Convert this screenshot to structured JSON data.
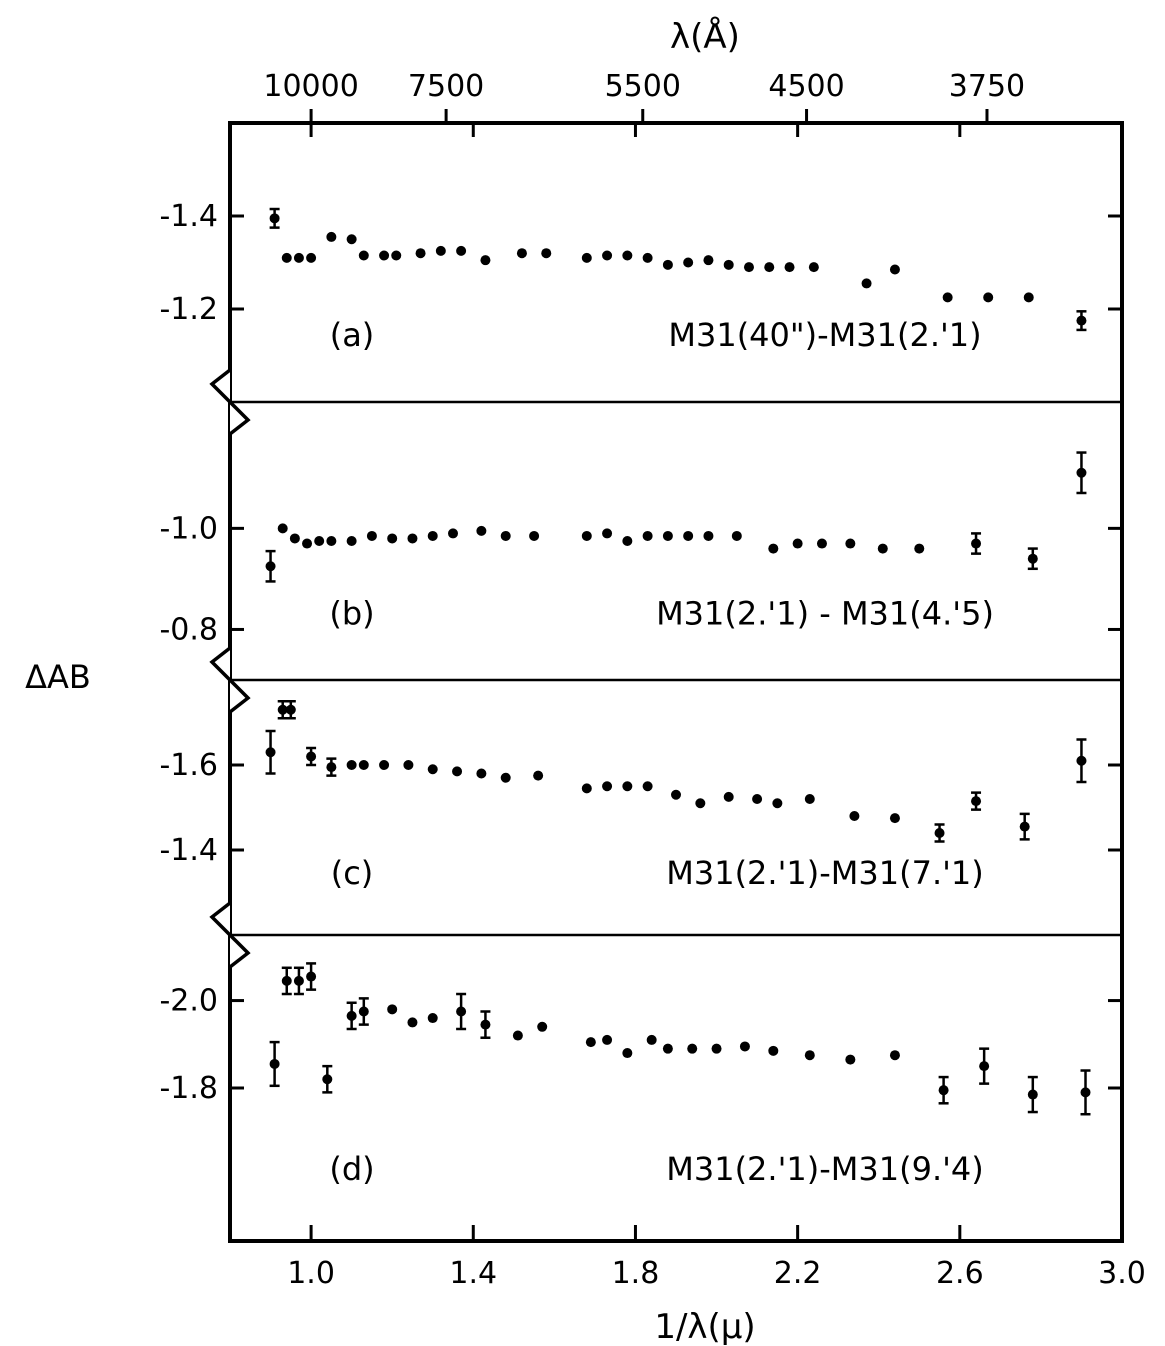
{
  "chart_data": {
    "type": "scatter",
    "title": "",
    "xlabel": "1/λ(μ)",
    "top_xlabel": "λ(Å)",
    "ylabel": "ΔAB",
    "xlim": [
      0.8,
      3.0
    ],
    "x_ticks": [
      "1.0",
      "1.4",
      "1.8",
      "2.2",
      "2.6",
      "3.0"
    ],
    "top_ticks": [
      {
        "label": "10000",
        "x": 1.0
      },
      {
        "label": "7500",
        "x": 1.333
      },
      {
        "label": "5500",
        "x": 1.818
      },
      {
        "label": "4500",
        "x": 2.222
      },
      {
        "label": "3750",
        "x": 2.667
      }
    ],
    "panels": [
      {
        "id": "a",
        "letter": "(a)",
        "label": "M31(40\")-M31(2.'1)",
        "ylim": [
          -1.0,
          -1.6
        ],
        "y_ticks": [
          "-1.4",
          "-1.2"
        ],
        "points": [
          {
            "x": 0.91,
            "y": -1.395,
            "err": 0.02
          },
          {
            "x": 0.94,
            "y": -1.31
          },
          {
            "x": 0.97,
            "y": -1.31
          },
          {
            "x": 1.0,
            "y": -1.31
          },
          {
            "x": 1.05,
            "y": -1.355
          },
          {
            "x": 1.1,
            "y": -1.35
          },
          {
            "x": 1.13,
            "y": -1.315
          },
          {
            "x": 1.18,
            "y": -1.315
          },
          {
            "x": 1.21,
            "y": -1.315
          },
          {
            "x": 1.27,
            "y": -1.32
          },
          {
            "x": 1.32,
            "y": -1.325
          },
          {
            "x": 1.37,
            "y": -1.325
          },
          {
            "x": 1.43,
            "y": -1.305
          },
          {
            "x": 1.52,
            "y": -1.32
          },
          {
            "x": 1.58,
            "y": -1.32
          },
          {
            "x": 1.68,
            "y": -1.31
          },
          {
            "x": 1.73,
            "y": -1.315
          },
          {
            "x": 1.78,
            "y": -1.315
          },
          {
            "x": 1.83,
            "y": -1.31
          },
          {
            "x": 1.88,
            "y": -1.295
          },
          {
            "x": 1.93,
            "y": -1.3
          },
          {
            "x": 1.98,
            "y": -1.305
          },
          {
            "x": 2.03,
            "y": -1.295
          },
          {
            "x": 2.08,
            "y": -1.29
          },
          {
            "x": 2.13,
            "y": -1.29
          },
          {
            "x": 2.18,
            "y": -1.29
          },
          {
            "x": 2.24,
            "y": -1.29
          },
          {
            "x": 2.37,
            "y": -1.255
          },
          {
            "x": 2.44,
            "y": -1.285
          },
          {
            "x": 2.57,
            "y": -1.225
          },
          {
            "x": 2.67,
            "y": -1.225
          },
          {
            "x": 2.77,
            "y": -1.225
          },
          {
            "x": 2.9,
            "y": -1.175,
            "err": 0.02
          }
        ]
      },
      {
        "id": "b",
        "letter": "(b)",
        "label": "M31(2.'1) - M31(4.'5)",
        "ylim": [
          -0.7,
          -1.25
        ],
        "y_ticks": [
          "-1.0",
          "-0.8"
        ],
        "points": [
          {
            "x": 0.9,
            "y": -0.925,
            "err": 0.03
          },
          {
            "x": 0.93,
            "y": -1.0
          },
          {
            "x": 0.96,
            "y": -0.98
          },
          {
            "x": 0.99,
            "y": -0.97
          },
          {
            "x": 1.02,
            "y": -0.975
          },
          {
            "x": 1.05,
            "y": -0.975
          },
          {
            "x": 1.1,
            "y": -0.975
          },
          {
            "x": 1.15,
            "y": -0.985
          },
          {
            "x": 1.2,
            "y": -0.98
          },
          {
            "x": 1.25,
            "y": -0.98
          },
          {
            "x": 1.3,
            "y": -0.985
          },
          {
            "x": 1.35,
            "y": -0.99
          },
          {
            "x": 1.42,
            "y": -0.995
          },
          {
            "x": 1.48,
            "y": -0.985
          },
          {
            "x": 1.55,
            "y": -0.985
          },
          {
            "x": 1.68,
            "y": -0.985
          },
          {
            "x": 1.73,
            "y": -0.99
          },
          {
            "x": 1.78,
            "y": -0.975
          },
          {
            "x": 1.83,
            "y": -0.985
          },
          {
            "x": 1.88,
            "y": -0.985
          },
          {
            "x": 1.93,
            "y": -0.985
          },
          {
            "x": 1.98,
            "y": -0.985
          },
          {
            "x": 2.05,
            "y": -0.985
          },
          {
            "x": 2.14,
            "y": -0.96
          },
          {
            "x": 2.2,
            "y": -0.97
          },
          {
            "x": 2.26,
            "y": -0.97
          },
          {
            "x": 2.33,
            "y": -0.97
          },
          {
            "x": 2.41,
            "y": -0.96
          },
          {
            "x": 2.5,
            "y": -0.96
          },
          {
            "x": 2.64,
            "y": -0.97,
            "err": 0.02
          },
          {
            "x": 2.78,
            "y": -0.94,
            "err": 0.02
          },
          {
            "x": 2.9,
            "y": -1.11,
            "err": 0.04
          }
        ]
      },
      {
        "id": "c",
        "letter": "(c)",
        "label": "M31(2.'1)-M31(7.'1)",
        "ylim": [
          -1.2,
          -1.8
        ],
        "y_ticks": [
          "-1.6",
          "-1.4"
        ],
        "points": [
          {
            "x": 0.9,
            "y": -1.63,
            "err": 0.05
          },
          {
            "x": 0.93,
            "y": -1.73,
            "err": 0.02
          },
          {
            "x": 0.95,
            "y": -1.73,
            "err": 0.02
          },
          {
            "x": 1.0,
            "y": -1.62,
            "err": 0.02
          },
          {
            "x": 1.05,
            "y": -1.595,
            "err": 0.02
          },
          {
            "x": 1.1,
            "y": -1.6
          },
          {
            "x": 1.13,
            "y": -1.6
          },
          {
            "x": 1.18,
            "y": -1.6
          },
          {
            "x": 1.24,
            "y": -1.6
          },
          {
            "x": 1.3,
            "y": -1.59
          },
          {
            "x": 1.36,
            "y": -1.585
          },
          {
            "x": 1.42,
            "y": -1.58
          },
          {
            "x": 1.48,
            "y": -1.57
          },
          {
            "x": 1.56,
            "y": -1.575
          },
          {
            "x": 1.68,
            "y": -1.545
          },
          {
            "x": 1.73,
            "y": -1.55
          },
          {
            "x": 1.78,
            "y": -1.55
          },
          {
            "x": 1.83,
            "y": -1.55
          },
          {
            "x": 1.9,
            "y": -1.53
          },
          {
            "x": 1.96,
            "y": -1.51
          },
          {
            "x": 2.03,
            "y": -1.525
          },
          {
            "x": 2.1,
            "y": -1.52
          },
          {
            "x": 2.15,
            "y": -1.51
          },
          {
            "x": 2.23,
            "y": -1.52
          },
          {
            "x": 2.34,
            "y": -1.48
          },
          {
            "x": 2.44,
            "y": -1.475
          },
          {
            "x": 2.55,
            "y": -1.44,
            "err": 0.02
          },
          {
            "x": 2.64,
            "y": -1.515,
            "err": 0.02
          },
          {
            "x": 2.76,
            "y": -1.455,
            "err": 0.03
          },
          {
            "x": 2.9,
            "y": -1.61,
            "err": 0.05
          }
        ]
      },
      {
        "id": "d",
        "letter": "(d)",
        "label": "M31(2.'1)-M31(9.'4)",
        "ylim": [
          -1.45,
          -2.15
        ],
        "y_ticks": [
          "-2.0",
          "-1.8"
        ],
        "points": [
          {
            "x": 0.91,
            "y": -1.855,
            "err": 0.05
          },
          {
            "x": 0.94,
            "y": -2.045,
            "err": 0.03
          },
          {
            "x": 0.97,
            "y": -2.045,
            "err": 0.03
          },
          {
            "x": 1.0,
            "y": -2.055,
            "err": 0.03
          },
          {
            "x": 1.04,
            "y": -1.82,
            "err": 0.03
          },
          {
            "x": 1.1,
            "y": -1.965,
            "err": 0.03
          },
          {
            "x": 1.13,
            "y": -1.975,
            "err": 0.03
          },
          {
            "x": 1.2,
            "y": -1.98
          },
          {
            "x": 1.25,
            "y": -1.95
          },
          {
            "x": 1.3,
            "y": -1.96
          },
          {
            "x": 1.37,
            "y": -1.975,
            "err": 0.04
          },
          {
            "x": 1.43,
            "y": -1.945,
            "err": 0.03
          },
          {
            "x": 1.51,
            "y": -1.92
          },
          {
            "x": 1.57,
            "y": -1.94
          },
          {
            "x": 1.69,
            "y": -1.905
          },
          {
            "x": 1.73,
            "y": -1.91
          },
          {
            "x": 1.78,
            "y": -1.88
          },
          {
            "x": 1.84,
            "y": -1.91
          },
          {
            "x": 1.88,
            "y": -1.89
          },
          {
            "x": 1.94,
            "y": -1.89
          },
          {
            "x": 2.0,
            "y": -1.89
          },
          {
            "x": 2.07,
            "y": -1.895
          },
          {
            "x": 2.14,
            "y": -1.885
          },
          {
            "x": 2.23,
            "y": -1.875
          },
          {
            "x": 2.33,
            "y": -1.865
          },
          {
            "x": 2.44,
            "y": -1.875
          },
          {
            "x": 2.56,
            "y": -1.795,
            "err": 0.03
          },
          {
            "x": 2.66,
            "y": -1.85,
            "err": 0.04
          },
          {
            "x": 2.78,
            "y": -1.785,
            "err": 0.04
          },
          {
            "x": 2.91,
            "y": -1.79,
            "err": 0.05
          }
        ]
      }
    ]
  }
}
